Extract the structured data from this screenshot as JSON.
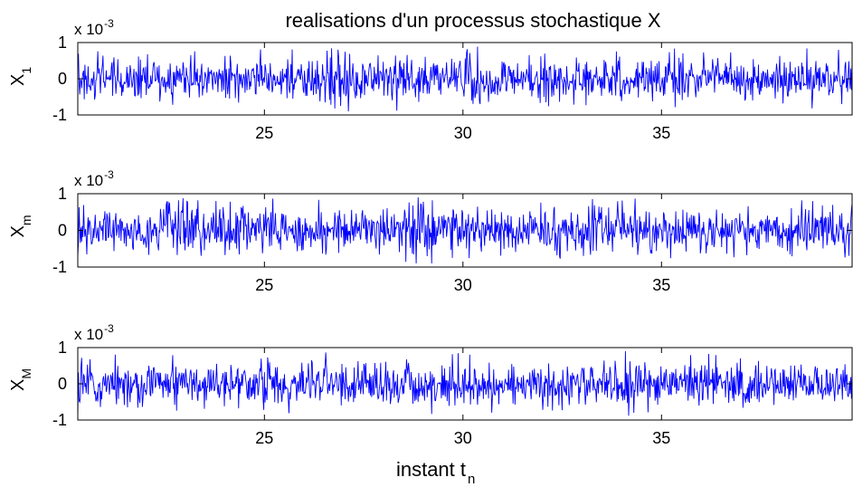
{
  "chart_data": {
    "type": "line",
    "title": "realisations d'un processus stochastique X",
    "xlabel": {
      "main": "instant t",
      "sub": "n"
    },
    "line_color": "#0000ff",
    "axis_color": "#000000",
    "grid": false,
    "panels": [
      {
        "ylabel": {
          "main": "X",
          "sub": "1"
        },
        "scale_label": {
          "base": "x 10",
          "exp": "-3"
        },
        "xlim": [
          20.3,
          39.8
        ],
        "ylim": [
          -1,
          1
        ],
        "xticks": [
          25,
          30,
          35
        ],
        "xtick_labels": [
          "25",
          "30",
          "35"
        ],
        "yticks": [
          -1,
          0,
          1
        ],
        "ytick_labels": [
          "-1",
          "0",
          "1"
        ],
        "series": {
          "points": 1200,
          "amplitude": 0.3,
          "bursts": [
            {
              "center": 27.0,
              "width": 0.35,
              "gain": 1.6
            },
            {
              "center": 30.3,
              "width": 0.25,
              "gain": 1.5
            }
          ],
          "seed": 11
        }
      },
      {
        "ylabel": {
          "main": "X",
          "sub": "m"
        },
        "scale_label": {
          "base": "x 10",
          "exp": "-3"
        },
        "xlim": [
          20.3,
          39.8
        ],
        "ylim": [
          -1,
          1
        ],
        "xticks": [
          25,
          30,
          35
        ],
        "xtick_labels": [
          "25",
          "30",
          "35"
        ],
        "yticks": [
          -1,
          0,
          1
        ],
        "ytick_labels": [
          "-1",
          "0",
          "1"
        ],
        "series": {
          "points": 1200,
          "amplitude": 0.3,
          "bursts": [
            {
              "center": 22.8,
              "width": 0.35,
              "gain": 1.8
            },
            {
              "center": 28.9,
              "width": 0.3,
              "gain": 2.1
            }
          ],
          "seed": 23
        }
      },
      {
        "ylabel": {
          "main": "X",
          "sub": "M"
        },
        "scale_label": {
          "base": "x 10",
          "exp": "-3"
        },
        "xlim": [
          20.3,
          39.8
        ],
        "ylim": [
          -1,
          1
        ],
        "xticks": [
          25,
          30,
          35
        ],
        "xtick_labels": [
          "25",
          "30",
          "35"
        ],
        "yticks": [
          -1,
          0,
          1
        ],
        "ytick_labels": [
          "-1",
          "0",
          "1"
        ],
        "series": {
          "points": 1200,
          "amplitude": 0.3,
          "bursts": [],
          "seed": 37
        }
      }
    ]
  }
}
